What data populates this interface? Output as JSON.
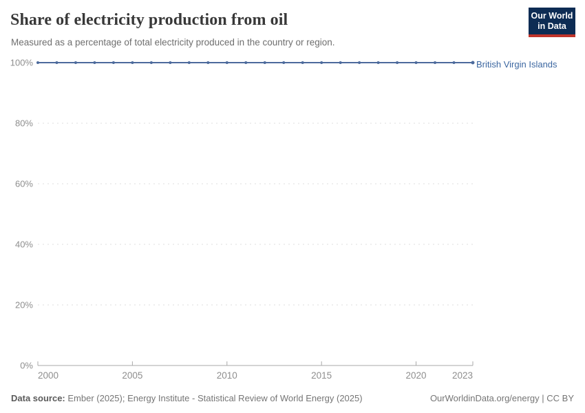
{
  "header": {
    "title": "Share of electricity production from oil",
    "subtitle": "Measured as a percentage of total electricity produced in the country or region.",
    "logo": {
      "line1": "Our World",
      "line2": "in Data"
    }
  },
  "chart_data": {
    "type": "line",
    "title": "Share of electricity production from oil",
    "xlabel": "",
    "ylabel": "",
    "xlim": [
      2000,
      2023
    ],
    "ylim": [
      0,
      100
    ],
    "yticks": [
      0,
      20,
      40,
      60,
      80,
      100
    ],
    "ytick_labels": [
      "0%",
      "20%",
      "40%",
      "60%",
      "80%",
      "100%"
    ],
    "xticks": [
      2000,
      2005,
      2010,
      2015,
      2020,
      2023
    ],
    "xtick_labels": [
      "2000",
      "2005",
      "2010",
      "2015",
      "2020",
      "2023"
    ],
    "grid": "horizontal-dashed",
    "legend_position": "right-of-line",
    "series": [
      {
        "name": "British Virgin Islands",
        "color": "#4c6a9c",
        "x": [
          2000,
          2001,
          2002,
          2003,
          2004,
          2005,
          2006,
          2007,
          2008,
          2009,
          2010,
          2011,
          2012,
          2013,
          2014,
          2015,
          2016,
          2017,
          2018,
          2019,
          2020,
          2021,
          2022,
          2023
        ],
        "values": [
          100,
          100,
          100,
          100,
          100,
          100,
          100,
          100,
          100,
          100,
          100,
          100,
          100,
          100,
          100,
          100,
          100,
          100,
          100,
          100,
          100,
          100,
          100,
          100
        ]
      }
    ]
  },
  "colors": {
    "accent_line": "#4c6a9c",
    "entity_label": "#3b66a0",
    "grid": "#dcdcdc",
    "axis": "#a9a9a9",
    "tick_text": "#8e8e8e",
    "logo_bg": "#0d2c54",
    "logo_red": "#c0342b"
  },
  "footer": {
    "datasource_label": "Data source:",
    "datasource_text": " Ember (2025); Energy Institute - Statistical Review of World Energy (2025)",
    "link_text": "OurWorldinData.org/energy | CC BY"
  }
}
